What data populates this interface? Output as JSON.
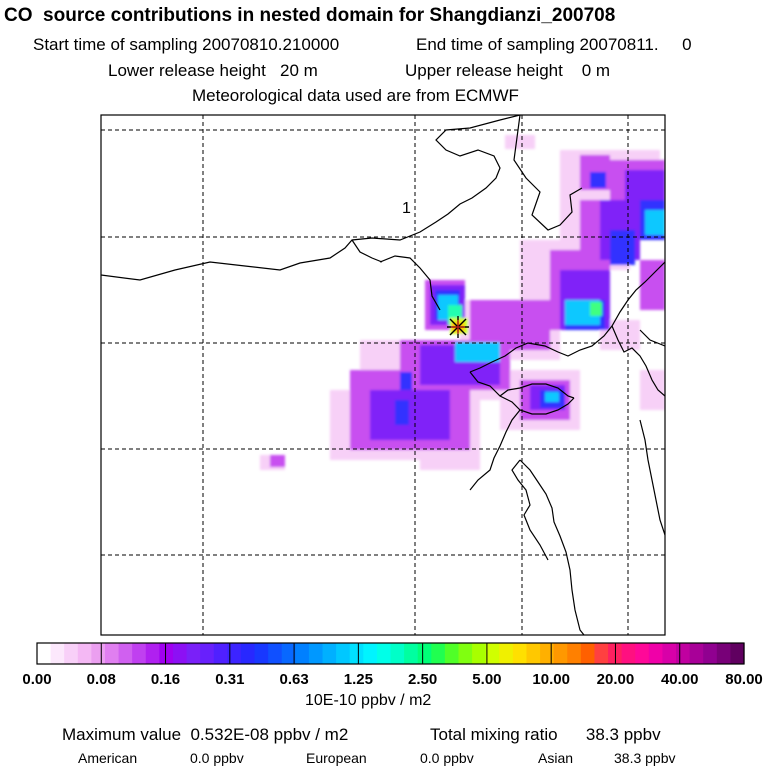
{
  "header": {
    "title": "CO  source contributions in nested domain for Shangdianzi_200708",
    "start_sampling": "Start time of sampling 20070810.210000",
    "end_sampling": "End time of sampling 20070811.     0",
    "lower_release": "Lower release height   20 m",
    "upper_release": "Upper release height    0 m",
    "met_data": "Meteorological data used are from ECMWF"
  },
  "map": {
    "region_label": "1",
    "receptor_marker": "star-icon",
    "frame_color": "#000000",
    "grid_style": "dashed"
  },
  "colorbar": {
    "tick_labels": [
      "0.00",
      "0.08",
      "0.16",
      "0.31",
      "0.63",
      "1.25",
      "2.50",
      "5.00",
      "10.00",
      "20.00",
      "40.00",
      "80.00"
    ],
    "unit": "10E-10 ppbv / m2",
    "colors": [
      "#ffffff",
      "#fce8fc",
      "#f8d0f8",
      "#f4b8f4",
      "#eb9ff0",
      "#e07ff0",
      "#d060f0",
      "#c040f0",
      "#b020f0",
      "#a000f0",
      "#8c10f4",
      "#7a20f8",
      "#6820fc",
      "#5020ff",
      "#3c24ff",
      "#2828ff",
      "#1838ff",
      "#1050ff",
      "#0868ff",
      "#0080ff",
      "#0098ff",
      "#00b0ff",
      "#00c8ff",
      "#00e0ff",
      "#00f4ff",
      "#00ffe8",
      "#00ffc8",
      "#00ffa0",
      "#00ff78",
      "#20ff50",
      "#50ff28",
      "#80ff10",
      "#a8ff00",
      "#d0ff00",
      "#f0f000",
      "#ffe000",
      "#ffc800",
      "#ffb000",
      "#ff9800",
      "#ff8000",
      "#ff6000",
      "#ff4040",
      "#ff2060",
      "#ff1080",
      "#ff0898",
      "#f000a8",
      "#d800a8",
      "#c000a0",
      "#a80098",
      "#900090",
      "#780078",
      "#600060"
    ]
  },
  "summary": {
    "max_value": "Maximum value  0.532E-08 ppbv / m2",
    "total_mixing": "Total mixing ratio      38.3 ppbv",
    "american_label": "American",
    "american_value": "0.0 ppbv",
    "european_label": "European",
    "european_value": "0.0 ppbv",
    "asian_label": "Asian",
    "asian_value": "38.3 ppbv"
  }
}
